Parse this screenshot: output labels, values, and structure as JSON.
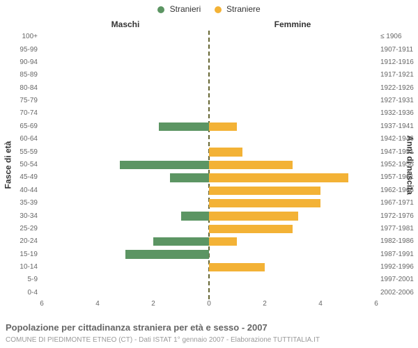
{
  "legend": {
    "male": {
      "label": "Stranieri",
      "color": "#5c9563"
    },
    "female": {
      "label": "Straniere",
      "color": "#f3b236"
    }
  },
  "headers": {
    "male": "Maschi",
    "female": "Femmine"
  },
  "axis_labels": {
    "left": "Fasce di età",
    "right": "Anni di nascita"
  },
  "chart": {
    "type": "population-pyramid",
    "x_max": 6,
    "x_ticks": [
      6,
      4,
      2,
      0,
      2,
      4,
      6
    ],
    "background_color": "#ffffff",
    "center_line_color": "#666633",
    "tick_color": "#666666",
    "rows": [
      {
        "age": "100+",
        "birth": "≤ 1906",
        "m": 0,
        "f": 0
      },
      {
        "age": "95-99",
        "birth": "1907-1911",
        "m": 0,
        "f": 0
      },
      {
        "age": "90-94",
        "birth": "1912-1916",
        "m": 0,
        "f": 0
      },
      {
        "age": "85-89",
        "birth": "1917-1921",
        "m": 0,
        "f": 0
      },
      {
        "age": "80-84",
        "birth": "1922-1926",
        "m": 0,
        "f": 0
      },
      {
        "age": "75-79",
        "birth": "1927-1931",
        "m": 0,
        "f": 0
      },
      {
        "age": "70-74",
        "birth": "1932-1936",
        "m": 0,
        "f": 0
      },
      {
        "age": "65-69",
        "birth": "1937-1941",
        "m": 1.8,
        "f": 1.0
      },
      {
        "age": "60-64",
        "birth": "1942-1946",
        "m": 0,
        "f": 0
      },
      {
        "age": "55-59",
        "birth": "1947-1951",
        "m": 0,
        "f": 1.2
      },
      {
        "age": "50-54",
        "birth": "1952-1956",
        "m": 3.2,
        "f": 3.0
      },
      {
        "age": "45-49",
        "birth": "1957-1961",
        "m": 1.4,
        "f": 5.0
      },
      {
        "age": "40-44",
        "birth": "1962-1966",
        "m": 0,
        "f": 4.0
      },
      {
        "age": "35-39",
        "birth": "1967-1971",
        "m": 0,
        "f": 4.0
      },
      {
        "age": "30-34",
        "birth": "1972-1976",
        "m": 1.0,
        "f": 3.2
      },
      {
        "age": "25-29",
        "birth": "1977-1981",
        "m": 0,
        "f": 3.0
      },
      {
        "age": "20-24",
        "birth": "1982-1986",
        "m": 2.0,
        "f": 1.0
      },
      {
        "age": "15-19",
        "birth": "1987-1991",
        "m": 3.0,
        "f": 0
      },
      {
        "age": "10-14",
        "birth": "1992-1996",
        "m": 0,
        "f": 2.0
      },
      {
        "age": "5-9",
        "birth": "1997-2001",
        "m": 0,
        "f": 0
      },
      {
        "age": "0-4",
        "birth": "2002-2006",
        "m": 0,
        "f": 0
      }
    ]
  },
  "title": "Popolazione per cittadinanza straniera per età e sesso - 2007",
  "subtitle": "COMUNE DI PIEDIMONTE ETNEO (CT) - Dati ISTAT 1° gennaio 2007 - Elaborazione TUTTITALIA.IT"
}
